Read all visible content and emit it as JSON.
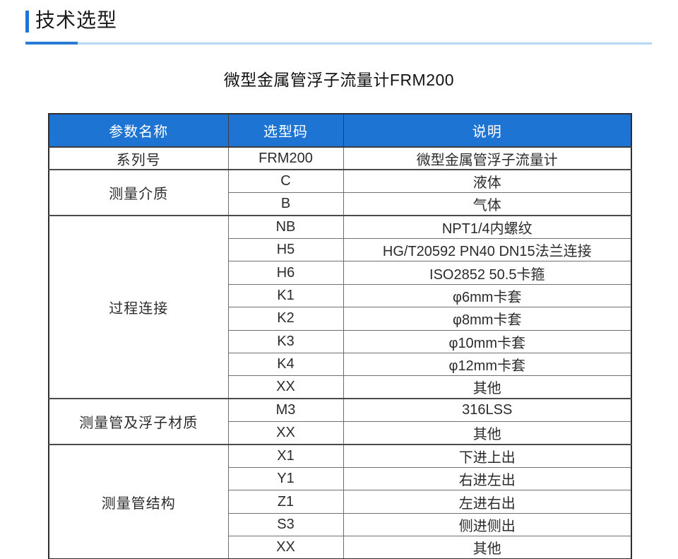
{
  "page_header": {
    "title": "技术选型"
  },
  "table_title": "微型金属管浮子流量计FRM200",
  "table": {
    "columns": [
      "参数名称",
      "选型码",
      "说明"
    ],
    "groups": [
      {
        "param": "系列号",
        "rows": [
          {
            "code": "FRM200",
            "desc": "微型金属管浮子流量计"
          }
        ]
      },
      {
        "param": "测量介质",
        "rows": [
          {
            "code": "C",
            "desc": "液体"
          },
          {
            "code": "B",
            "desc": "气体"
          }
        ]
      },
      {
        "param": "过程连接",
        "rows": [
          {
            "code": "NB",
            "desc": "NPT1/4内螺纹"
          },
          {
            "code": "H5",
            "desc": "HG/T20592 PN40 DN15法兰连接"
          },
          {
            "code": "H6",
            "desc": "ISO2852 50.5卡箍"
          },
          {
            "code": "K1",
            "desc": "φ6mm卡套"
          },
          {
            "code": "K2",
            "desc": "φ8mm卡套"
          },
          {
            "code": "K3",
            "desc": "φ10mm卡套"
          },
          {
            "code": "K4",
            "desc": "φ12mm卡套"
          },
          {
            "code": "XX",
            "desc": "其他"
          }
        ]
      },
      {
        "param": "测量管及浮子材质",
        "rows": [
          {
            "code": "M3",
            "desc": "316LSS"
          },
          {
            "code": "XX",
            "desc": "其他"
          }
        ]
      },
      {
        "param": "测量管结构",
        "rows": [
          {
            "code": "X1",
            "desc": "下进上出"
          },
          {
            "code": "Y1",
            "desc": "右进左出"
          },
          {
            "code": "Z1",
            "desc": "左进右出"
          },
          {
            "code": "S3",
            "desc": "侧进侧出"
          },
          {
            "code": "XX",
            "desc": "其他"
          }
        ]
      }
    ]
  },
  "colors": {
    "accent_blue": "#1d74d2",
    "underline_dark": "#2a7bd3",
    "underline_light": "#b5d7f3",
    "header_text": "#ffffff",
    "body_text": "#2b2b2b",
    "border_dark": "#3c3c3c",
    "border_light": "#6f6f6f"
  }
}
